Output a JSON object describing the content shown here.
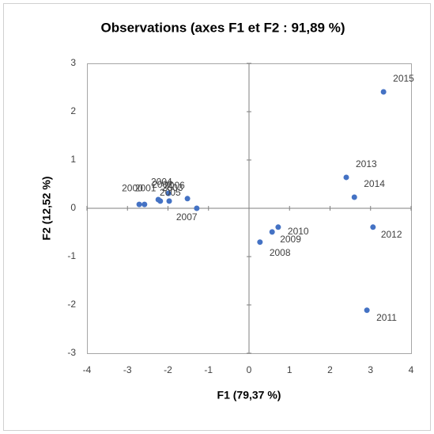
{
  "chart_data": {
    "type": "scatter",
    "title": "Observations (axes F1 et F2 : 91,89 %)",
    "x_label": "F1 (79,37 %)",
    "y_label": "F2 (12,52 %)",
    "labels": [
      "2000",
      "2001",
      "2002",
      "2003",
      "2004",
      "2005",
      "2006",
      "2007",
      "2008",
      "2009",
      "2010",
      "2011",
      "2012",
      "2013",
      "2014",
      "2015"
    ],
    "x": [
      -2.71,
      -2.58,
      -2.24,
      -2.19,
      -1.99,
      -1.97,
      -1.52,
      -1.29,
      0.27,
      0.57,
      0.72,
      2.91,
      3.06,
      2.4,
      2.6,
      3.32
    ],
    "values": [
      0.08,
      0.08,
      0.18,
      0.15,
      0.31,
      0.15,
      0.2,
      0.0,
      -0.7,
      -0.49,
      -0.39,
      -2.11,
      -0.39,
      0.64,
      0.23,
      2.41
    ],
    "color": "#4472c4",
    "xlim": [
      -4,
      4
    ],
    "ylim": [
      -3,
      3
    ],
    "xticks": [
      -4,
      -3,
      -2,
      -1,
      0,
      1,
      2,
      3,
      4
    ],
    "yticks": [
      -3,
      -2,
      -1,
      0,
      1,
      2,
      3
    ]
  }
}
